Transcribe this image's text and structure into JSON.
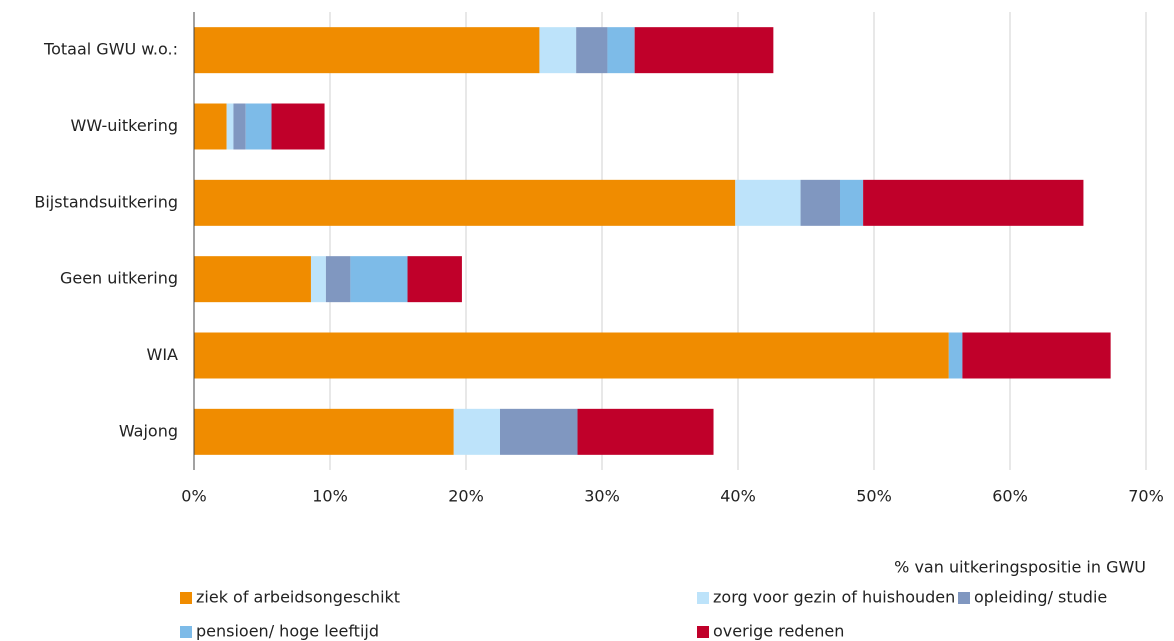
{
  "chart_data": {
    "type": "stacked_barh",
    "categories": [
      "Totaal GWU w.o.:",
      "WW-uitkering",
      "Bijstandsuitkering",
      "Geen uitkering",
      "WIA",
      "Wajong"
    ],
    "series": [
      {
        "name": "ziek of arbeidsongeschikt",
        "color": "#f08c00",
        "values": [
          25.4,
          2.4,
          39.8,
          8.6,
          55.5,
          19.1
        ]
      },
      {
        "name": "zorg voor gezin of huishouden",
        "color": "#bde3fa",
        "values": [
          2.7,
          0.5,
          4.8,
          1.1,
          0,
          3.4
        ]
      },
      {
        "name": "opleiding/ studie",
        "color": "#8097c0",
        "values": [
          2.3,
          0.9,
          2.9,
          1.8,
          0,
          5.7
        ]
      },
      {
        "name": "pensioen/ hoge leeftijd",
        "color": "#7dbbe8",
        "values": [
          2.0,
          1.9,
          1.7,
          4.2,
          1.0,
          0
        ]
      },
      {
        "name": "overige redenen",
        "color": "#c0002a",
        "values": [
          10.2,
          3.9,
          16.2,
          4.0,
          10.9,
          10.0
        ]
      }
    ],
    "xlabel": "% van uitkeringspositie in GWU",
    "xlim": [
      0,
      70
    ],
    "xticks": [
      {
        "value": 0,
        "label": "0%"
      },
      {
        "value": 10,
        "label": "10%"
      },
      {
        "value": 20,
        "label": "20%"
      },
      {
        "value": 30,
        "label": "30%"
      },
      {
        "value": 40,
        "label": "40%"
      },
      {
        "value": 50,
        "label": "50%"
      },
      {
        "value": 60,
        "label": "60%"
      },
      {
        "value": 70,
        "label": "70%"
      }
    ],
    "grid": true,
    "legend": "bottom"
  }
}
